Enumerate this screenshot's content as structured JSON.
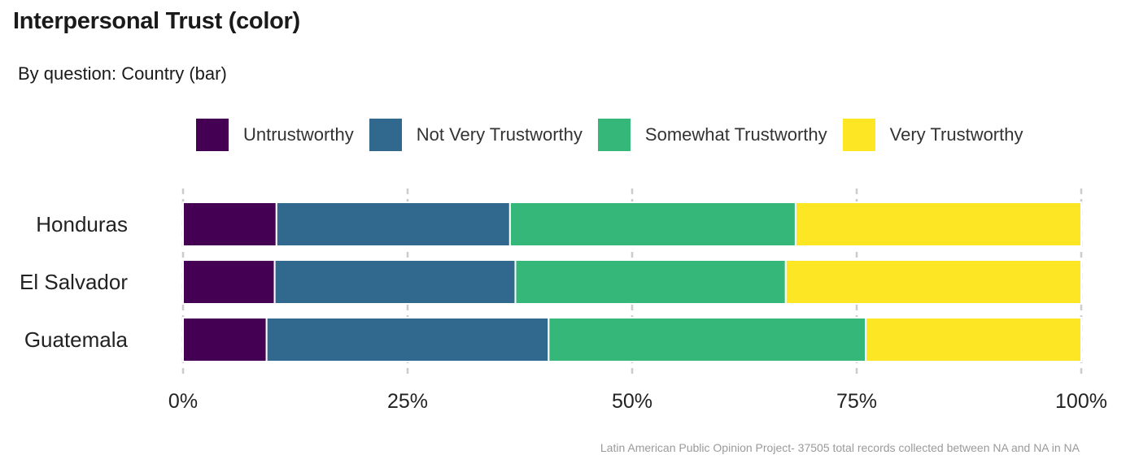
{
  "title": "Interpersonal Trust (color)",
  "subtitle": "By question: Country (bar)",
  "caption": "Latin American Public Opinion Project- 37505 total records collected between NA and NA in  NA",
  "chart_data": {
    "type": "bar",
    "orientation": "horizontal",
    "stacked": true,
    "normalized": true,
    "categories": [
      "Honduras",
      "El Salvador",
      "Guatemala"
    ],
    "series": [
      {
        "name": "Untrustworthy",
        "color": "#440154",
        "values": [
          10.4,
          10.2,
          9.3
        ]
      },
      {
        "name": "Not Very Trustworthy",
        "color": "#31688e",
        "values": [
          26.0,
          26.8,
          31.4
        ]
      },
      {
        "name": "Somewhat Trustworthy",
        "color": "#35b779",
        "values": [
          31.8,
          30.1,
          35.3
        ]
      },
      {
        "name": "Very Trustworthy",
        "color": "#fde725",
        "values": [
          31.8,
          32.9,
          24.0
        ]
      }
    ],
    "x_ticks": [
      "0%",
      "25%",
      "50%",
      "75%",
      "100%"
    ],
    "xlim": [
      0,
      100
    ],
    "xlabel": "",
    "ylabel": "",
    "grid": true,
    "legend_position": "top"
  }
}
